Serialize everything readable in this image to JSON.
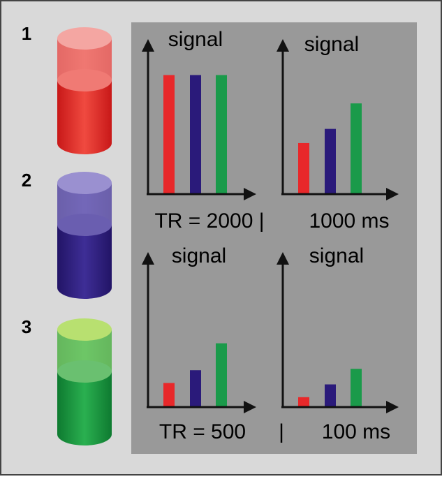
{
  "chart_data": [
    {
      "type": "bar",
      "ylabel": "signal",
      "xlabel": "TR = 2000 |",
      "categories": [
        null,
        null,
        null
      ],
      "values": [
        84,
        84,
        84
      ],
      "colors": [
        "#e8282a",
        "#2a1a7a",
        "#1a9a4a"
      ],
      "ylim": [
        0,
        100
      ]
    },
    {
      "type": "bar",
      "ylabel": "signal",
      "xlabel": "1000 ms",
      "categories": [
        null,
        null,
        null
      ],
      "values": [
        36,
        46,
        64
      ],
      "colors": [
        "#e8282a",
        "#2a1a7a",
        "#1a9a4a"
      ],
      "ylim": [
        0,
        100
      ]
    },
    {
      "type": "bar",
      "ylabel": "signal",
      "xlabel": "TR = 500",
      "categories": [
        null,
        null,
        null
      ],
      "values": [
        17,
        26,
        45
      ],
      "colors": [
        "#e8282a",
        "#2a1a7a",
        "#1a9a4a"
      ],
      "ylim": [
        0,
        100
      ]
    },
    {
      "type": "bar",
      "ylabel": "signal",
      "xlabel": "100 ms",
      "categories": [
        null,
        null,
        null
      ],
      "values": [
        7,
        16,
        27
      ],
      "colors": [
        "#e8282a",
        "#2a1a7a",
        "#1a9a4a"
      ],
      "ylim": [
        0,
        100
      ]
    }
  ],
  "separator": "|",
  "cylinders": [
    {
      "label": "1"
    },
    {
      "label": "2"
    },
    {
      "label": "3"
    }
  ]
}
